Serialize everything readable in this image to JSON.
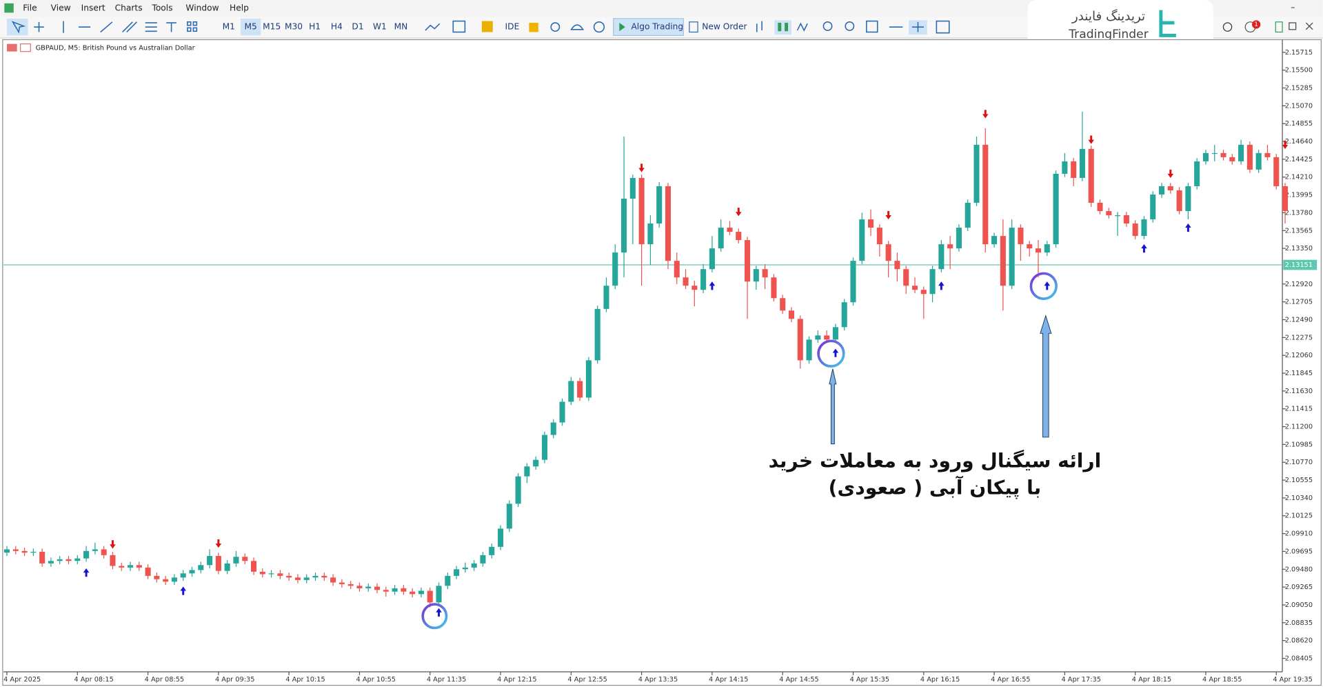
{
  "menu": [
    "File",
    "View",
    "Insert",
    "Charts",
    "Tools",
    "Window",
    "Help"
  ],
  "toolbar": {
    "timeframes": [
      "M1",
      "M5",
      "M15",
      "M30",
      "H1",
      "H4",
      "D1",
      "W1",
      "MN"
    ],
    "ide": "IDE",
    "algo_trading": "Algo Trading",
    "new_order": "New Order",
    "notification_badge": "1"
  },
  "logo": {
    "persian": "تریدینگ فایندر",
    "latin": "TradingFinder"
  },
  "annotation": {
    "line1": "ارائه سیگنال ورود به معاملات خرید",
    "line2": "با پیکان آبی ( صعودی)"
  },
  "chart_data": {
    "type": "candlestick",
    "title": "GBPAUD, M5:  British Pound vs Australian Dollar",
    "up_color": "#26a69a",
    "down_color": "#ef5350",
    "grid": false,
    "ylim": [
      2.08253,
      2.15837
    ],
    "yticks": [
      2.15715,
      {
        "value": 2.155,
        "label": "2.15500"
      },
      2.15285,
      {
        "value": 2.1507,
        "label": "2.15070"
      },
      2.14855,
      {
        "value": 2.1464,
        "label": "2.14640"
      },
      2.14425,
      {
        "value": 2.1421,
        "label": "2.14210"
      },
      2.13995,
      {
        "value": 2.1378,
        "label": "2.13780"
      },
      2.13565,
      {
        "value": 2.1335,
        "label": "2.13350"
      },
      {
        "value": 2.1292,
        "label": "2.12920"
      },
      2.12705,
      {
        "value": 2.1249,
        "label": "2.12490"
      },
      2.12275,
      {
        "value": 2.1206,
        "label": "2.12060"
      },
      2.11845,
      {
        "value": 2.1163,
        "label": "2.11630"
      },
      2.11415,
      {
        "value": 2.112,
        "label": "2.11200"
      },
      2.10985,
      {
        "value": 2.1077,
        "label": "2.10770"
      },
      2.10555,
      {
        "value": 2.1034,
        "label": "2.10340"
      },
      2.10125,
      {
        "value": 2.0991,
        "label": "2.09910"
      },
      2.09695,
      {
        "value": 2.0948,
        "label": "2.09480"
      },
      2.09265,
      {
        "value": 2.0905,
        "label": "2.09050"
      },
      2.08835,
      {
        "value": 2.0862,
        "label": "2.08620"
      },
      2.08405
    ],
    "current_price": 2.13151,
    "current_price_color": "#5cc8b0",
    "categories": [
      "4 Apr 2025",
      null,
      null,
      null,
      null,
      null,
      null,
      null,
      "4 Apr 08:15",
      null,
      null,
      null,
      null,
      null,
      null,
      null,
      "4 Apr 08:55",
      null,
      null,
      null,
      null,
      null,
      null,
      null,
      "4 Apr 09:35",
      null,
      null,
      null,
      null,
      null,
      null,
      null,
      "4 Apr 10:15",
      null,
      null,
      null,
      null,
      null,
      null,
      null,
      "4 Apr 10:55",
      null,
      null,
      null,
      null,
      null,
      null,
      null,
      "4 Apr 11:35",
      null,
      null,
      null,
      null,
      null,
      null,
      null,
      "4 Apr 12:15",
      null,
      null,
      null,
      null,
      null,
      null,
      null,
      "4 Apr 12:55",
      null,
      null,
      null,
      null,
      null,
      null,
      null,
      "4 Apr 13:35",
      null,
      null,
      null,
      null,
      null,
      null,
      null,
      "4 Apr 14:15",
      null,
      null,
      null,
      null,
      null,
      null,
      null,
      "4 Apr 14:55",
      null,
      null,
      null,
      null,
      null,
      null,
      null,
      "4 Apr 15:35",
      null,
      null,
      null,
      null,
      null,
      null,
      null,
      "4 Apr 16:15",
      null,
      null,
      null,
      null,
      null,
      null,
      null,
      "4 Apr 16:55",
      null,
      null,
      null,
      null,
      null,
      null,
      null,
      "4 Apr 17:35",
      null,
      null,
      null,
      null,
      null,
      null,
      null,
      "4 Apr 18:15",
      null,
      null,
      null,
      null,
      null,
      null,
      null,
      "4 Apr 18:55",
      null,
      null,
      null,
      null,
      null,
      null,
      null,
      "4 Apr 19:35",
      null
    ],
    "open": [
      2.0968,
      2.0972,
      2.097,
      2.0968,
      2.0969,
      2.0955,
      2.0958,
      2.096,
      2.0958,
      2.0961,
      2.097,
      2.0972,
      2.0965,
      2.0952,
      2.095,
      2.0953,
      2.095,
      2.094,
      2.0936,
      2.0933,
      2.0938,
      2.0943,
      2.0947,
      2.0953,
      2.0964,
      2.0946,
      2.0955,
      2.0963,
      2.0958,
      2.0945,
      2.0942,
      2.0943,
      2.094,
      2.0938,
      2.0935,
      2.0938,
      2.094,
      2.0938,
      2.0932,
      2.093,
      2.0928,
      2.0925,
      2.0927,
      2.0923,
      2.0921,
      2.0925,
      2.0921,
      2.0918,
      2.0922,
      2.0908,
      2.0928,
      2.094,
      2.0948,
      2.095,
      2.0955,
      2.0965,
      2.0975,
      2.0997,
      2.1027,
      2.106,
      2.1072,
      2.108,
      2.111,
      2.1125,
      2.115,
      2.1175,
      2.1155,
      2.12,
      2.1262,
      2.129,
      2.133,
      2.1395,
      2.142,
      2.134,
      2.1365,
      2.141,
      2.132,
      2.13,
      2.129,
      2.1285,
      2.131,
      2.1335,
      2.136,
      2.1355,
      2.1345,
      2.1295,
      2.131,
      2.13,
      2.1275,
      2.126,
      2.125,
      2.12,
      2.1225,
      2.123,
      2.1225,
      2.124,
      2.127,
      2.132,
      2.137,
      2.136,
      2.134,
      2.132,
      2.131,
      2.129,
      2.1285,
      2.128,
      2.131,
      2.134,
      2.1335,
      2.136,
      2.139,
      2.146,
      2.134,
      2.135,
      2.129,
      2.136,
      2.134,
      2.1335,
      2.133,
      2.134,
      2.1425,
      2.144,
      2.142,
      2.1455,
      2.139,
      2.138,
      2.1375,
      2.1375,
      2.1365,
      2.135,
      2.137,
      2.14,
      2.141,
      2.1405,
      2.138,
      2.141,
      2.144,
      2.145,
      2.145,
      2.1445,
      2.144,
      2.146,
      2.143,
      2.145,
      2.1445,
      2.141
    ],
    "high": [
      2.0976,
      2.0976,
      2.0974,
      2.0973,
      2.0973,
      2.0962,
      2.0964,
      2.0964,
      2.0965,
      2.0976,
      2.098,
      2.0976,
      2.0969,
      2.0956,
      2.0957,
      2.0957,
      2.0954,
      2.0944,
      2.094,
      2.0942,
      2.0947,
      2.0951,
      2.0957,
      2.0972,
      2.0968,
      2.0959,
      2.097,
      2.0967,
      2.0962,
      2.0949,
      2.0947,
      2.0947,
      2.0944,
      2.0942,
      2.0942,
      2.0944,
      2.0944,
      2.0942,
      2.0936,
      2.0934,
      2.0932,
      2.0931,
      2.0931,
      2.0927,
      2.0929,
      2.0929,
      2.0925,
      2.0926,
      2.0926,
      2.0932,
      2.0944,
      2.0952,
      2.0956,
      2.0959,
      2.0969,
      2.0979,
      2.1001,
      2.1031,
      2.1064,
      2.1076,
      2.1084,
      2.1114,
      2.1129,
      2.1154,
      2.118,
      2.1179,
      2.1204,
      2.1266,
      2.13,
      2.134,
      2.147,
      2.1424,
      2.1424,
      2.1375,
      2.1415,
      2.1414,
      2.133,
      2.131,
      2.1296,
      2.1316,
      2.135,
      2.137,
      2.1368,
      2.1359,
      2.1349,
      2.1314,
      2.1316,
      2.1304,
      2.1279,
      2.1264,
      2.1254,
      2.1229,
      2.1236,
      2.1236,
      2.1244,
      2.1274,
      2.1324,
      2.1378,
      2.1382,
      2.1364,
      2.1344,
      2.133,
      2.1314,
      2.13,
      2.1289,
      2.1314,
      2.1345,
      2.135,
      2.1364,
      2.1394,
      2.147,
      2.148,
      2.1354,
      2.137,
      2.137,
      2.1364,
      2.1344,
      2.1345,
      2.1344,
      2.1429,
      2.145,
      2.1444,
      2.15,
      2.1459,
      2.1394,
      2.1384,
      2.1379,
      2.1379,
      2.1369,
      2.1374,
      2.1404,
      2.1414,
      2.1414,
      2.1409,
      2.1414,
      2.1444,
      2.1454,
      2.146,
      2.1454,
      2.1449,
      2.1466,
      2.1464,
      2.1454,
      2.146,
      2.1449,
      2.1414
    ],
    "low": [
      2.0964,
      2.0966,
      2.0964,
      2.0964,
      2.0951,
      2.0951,
      2.0954,
      2.0954,
      2.0954,
      2.0957,
      2.0966,
      2.0961,
      2.0948,
      2.0946,
      2.0946,
      2.0946,
      2.0936,
      2.0932,
      2.0929,
      2.0929,
      2.0934,
      2.0939,
      2.0943,
      2.0949,
      2.0942,
      2.0942,
      2.0951,
      2.0954,
      2.0941,
      2.0938,
      2.0938,
      2.0936,
      2.0934,
      2.0931,
      2.0931,
      2.0934,
      2.0934,
      2.0928,
      2.0926,
      2.0924,
      2.0921,
      2.0921,
      2.0919,
      2.0915,
      2.0917,
      2.0917,
      2.0914,
      2.0914,
      2.0902,
      2.0904,
      2.0924,
      2.0936,
      2.0944,
      2.0946,
      2.0951,
      2.0961,
      2.0971,
      2.0993,
      2.1023,
      2.1052,
      2.1068,
      2.1076,
      2.1106,
      2.1121,
      2.1146,
      2.1151,
      2.1151,
      2.1196,
      2.1258,
      2.1286,
      2.13,
      2.134,
      2.129,
      2.1315,
      2.136,
      2.131,
      2.1292,
      2.1286,
      2.1265,
      2.1281,
      2.1306,
      2.1331,
      2.1351,
      2.1341,
      2.125,
      2.1285,
      2.1286,
      2.1271,
      2.1256,
      2.1246,
      2.119,
      2.1196,
      2.1221,
      2.1221,
      2.1221,
      2.1236,
      2.1266,
      2.1316,
      2.135,
      2.1325,
      2.13,
      2.1295,
      2.128,
      2.1281,
      2.125,
      2.127,
      2.1306,
      2.131,
      2.1331,
      2.1356,
      2.1386,
      2.133,
      2.1336,
      2.126,
      2.1286,
      2.132,
      2.1325,
      2.13,
      2.1326,
      2.1336,
      2.1421,
      2.141,
      2.1416,
      2.1385,
      2.1376,
      2.1371,
      2.135,
      2.1361,
      2.1346,
      2.1346,
      2.1366,
      2.1396,
      2.1401,
      2.1376,
      2.137,
      2.1406,
      2.1436,
      2.144,
      2.1441,
      2.1436,
      2.1436,
      2.1426,
      2.1426,
      2.1441,
      2.1406,
      2.1365
    ],
    "close": [
      2.0972,
      2.097,
      2.0968,
      2.0969,
      2.0955,
      2.0958,
      2.096,
      2.0958,
      2.0961,
      2.097,
      2.0972,
      2.0965,
      2.0952,
      2.095,
      2.0953,
      2.095,
      2.094,
      2.0936,
      2.0933,
      2.0938,
      2.0943,
      2.0947,
      2.0953,
      2.0964,
      2.0946,
      2.0955,
      2.0963,
      2.0958,
      2.0945,
      2.0942,
      2.0943,
      2.094,
      2.0938,
      2.0935,
      2.0938,
      2.094,
      2.0938,
      2.0932,
      2.093,
      2.0928,
      2.0925,
      2.0927,
      2.0923,
      2.0921,
      2.0925,
      2.0921,
      2.0918,
      2.0922,
      2.0908,
      2.0928,
      2.094,
      2.0948,
      2.095,
      2.0955,
      2.0965,
      2.0975,
      2.0997,
      2.1027,
      2.106,
      2.1072,
      2.108,
      2.111,
      2.1125,
      2.115,
      2.1175,
      2.1155,
      2.12,
      2.1262,
      2.129,
      2.133,
      2.1395,
      2.142,
      2.134,
      2.1365,
      2.141,
      2.132,
      2.13,
      2.129,
      2.1285,
      2.131,
      2.1335,
      2.136,
      2.1355,
      2.1345,
      2.1295,
      2.131,
      2.13,
      2.1275,
      2.126,
      2.125,
      2.12,
      2.1225,
      2.123,
      2.1225,
      2.124,
      2.127,
      2.132,
      2.137,
      2.136,
      2.134,
      2.132,
      2.131,
      2.129,
      2.1285,
      2.128,
      2.131,
      2.134,
      2.1335,
      2.136,
      2.139,
      2.146,
      2.134,
      2.135,
      2.129,
      2.136,
      2.134,
      2.1335,
      2.133,
      2.134,
      2.1425,
      2.144,
      2.142,
      2.1455,
      2.139,
      2.138,
      2.1375,
      2.1375,
      2.1365,
      2.135,
      2.137,
      2.14,
      2.141,
      2.1405,
      2.138,
      2.141,
      2.144,
      2.145,
      2.145,
      2.1445,
      2.144,
      2.146,
      2.143,
      2.145,
      2.1445,
      2.141,
      2.138
    ],
    "buy_signal_color": "#1414d2",
    "sell_signal_color": "#dd1111",
    "buy_signals": [
      null,
      null,
      null,
      null,
      null,
      null,
      null,
      null,
      null,
      2.0944,
      null,
      null,
      null,
      null,
      null,
      null,
      null,
      null,
      null,
      null,
      2.0922,
      null,
      null,
      null,
      null,
      null,
      null,
      null,
      null,
      null,
      null,
      null,
      null,
      null,
      null,
      null,
      null,
      null,
      null,
      null,
      null,
      null,
      null,
      null,
      null,
      null,
      null,
      null,
      null,
      2.0896,
      null,
      null,
      null,
      null,
      null,
      null,
      null,
      null,
      null,
      null,
      null,
      null,
      null,
      null,
      null,
      null,
      null,
      null,
      null,
      null,
      null,
      null,
      null,
      null,
      null,
      null,
      null,
      null,
      null,
      null,
      2.129,
      null,
      null,
      null,
      null,
      null,
      null,
      null,
      null,
      null,
      null,
      null,
      null,
      null,
      2.1209,
      null,
      null,
      null,
      null,
      null,
      null,
      null,
      null,
      null,
      null,
      null,
      2.129,
      null,
      null,
      null,
      null,
      null,
      null,
      null,
      null,
      null,
      null,
      null,
      2.129,
      null,
      null,
      null,
      null,
      null,
      null,
      null,
      null,
      null,
      null,
      2.1335,
      null,
      null,
      null,
      null,
      2.136,
      null,
      null,
      null,
      null,
      null,
      null,
      null,
      null,
      null,
      null,
      null
    ],
    "sell_signals": [
      null,
      null,
      null,
      null,
      null,
      null,
      null,
      null,
      null,
      null,
      null,
      null,
      2.0978,
      null,
      null,
      null,
      null,
      null,
      null,
      null,
      null,
      null,
      null,
      null,
      2.0979,
      null,
      null,
      null,
      null,
      null,
      null,
      null,
      null,
      null,
      null,
      null,
      null,
      null,
      null,
      null,
      null,
      null,
      null,
      null,
      null,
      null,
      null,
      null,
      null,
      null,
      null,
      null,
      null,
      null,
      null,
      null,
      null,
      null,
      null,
      null,
      null,
      null,
      null,
      null,
      null,
      null,
      null,
      null,
      null,
      null,
      null,
      null,
      2.1432,
      null,
      null,
      null,
      null,
      null,
      null,
      null,
      null,
      null,
      null,
      2.1379,
      null,
      null,
      null,
      null,
      null,
      null,
      null,
      null,
      null,
      null,
      null,
      null,
      null,
      null,
      null,
      null,
      2.1375,
      null,
      null,
      null,
      null,
      null,
      null,
      null,
      null,
      null,
      null,
      2.1497,
      null,
      null,
      null,
      null,
      null,
      null,
      null,
      null,
      null,
      null,
      null,
      2.1466,
      null,
      null,
      null,
      null,
      null,
      null,
      null,
      null,
      2.1425,
      null,
      null,
      null,
      null,
      null,
      null,
      null,
      null,
      null,
      null,
      null,
      null,
      2.146,
      null
    ]
  }
}
